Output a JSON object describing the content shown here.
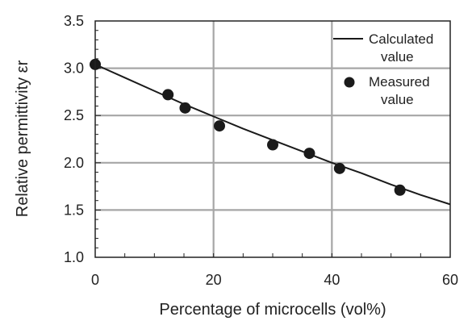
{
  "chart_data": {
    "type": "scatter",
    "title": "",
    "xlabel": "Percentage of microcells (vol%)",
    "ylabel": "Relative permittivity εr",
    "xlim": [
      0,
      60
    ],
    "ylim": [
      1.0,
      3.5
    ],
    "x_ticks": [
      "0",
      "20",
      "40",
      "60"
    ],
    "y_ticks": [
      "1.0",
      "1.5",
      "2.0",
      "2.5",
      "3.0",
      "3.5"
    ],
    "grid": true,
    "legend_position": "top-right",
    "series": [
      {
        "name": "Calculated value",
        "legend_lines": [
          "Calculated",
          "value"
        ],
        "kind": "line",
        "color": "#1a1a1a",
        "x": [
          0,
          5,
          10,
          15,
          20,
          25,
          30,
          35,
          40,
          45,
          50,
          55,
          60
        ],
        "y": [
          3.04,
          2.9,
          2.76,
          2.62,
          2.49,
          2.36,
          2.24,
          2.12,
          2.0,
          1.89,
          1.77,
          1.66,
          1.56
        ]
      },
      {
        "name": "Measured value",
        "legend_lines": [
          "Measured",
          "value"
        ],
        "kind": "scatter",
        "color": "#1a1a1a",
        "x": [
          0,
          12.3,
          15.2,
          21.0,
          30.0,
          36.2,
          41.3,
          51.5
        ],
        "y": [
          3.04,
          2.72,
          2.58,
          2.39,
          2.19,
          2.1,
          1.94,
          1.71
        ]
      }
    ]
  }
}
